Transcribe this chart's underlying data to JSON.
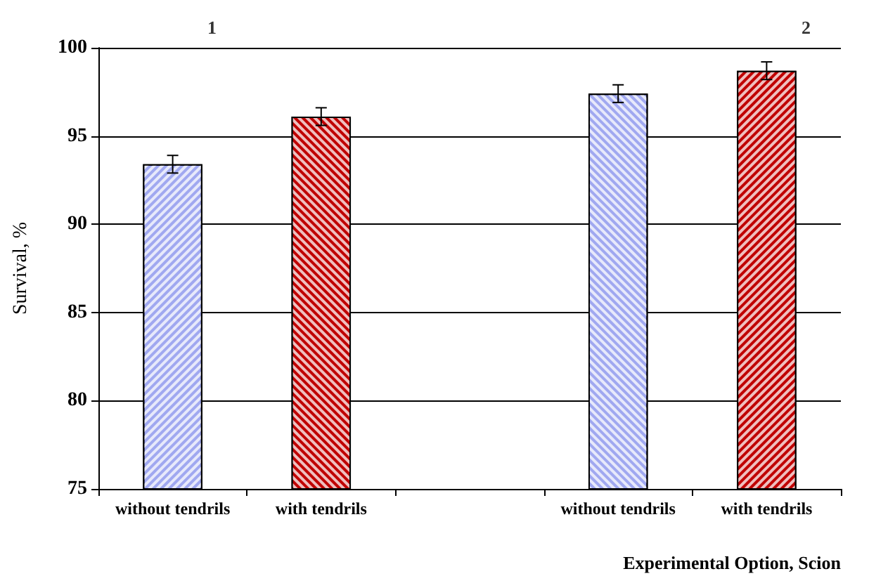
{
  "chart_data": {
    "type": "bar",
    "categories": [
      "without tendrils",
      "with tendrils",
      null,
      "without tendrils",
      "with tendrils"
    ],
    "values": [
      93.4,
      96.1,
      null,
      97.4,
      98.7
    ],
    "errors": [
      0.5,
      0.5,
      null,
      0.5,
      0.5
    ],
    "colors": [
      "#a0a8f0",
      "#c00000",
      null,
      "#a0a8f0",
      "#c00000"
    ],
    "xlabel": "Experimental Option, Scion",
    "ylabel": "Survival, %",
    "annotations": [
      "1",
      "2"
    ],
    "ylim": [
      75,
      100
    ],
    "yticks": [
      75,
      80,
      85,
      90,
      95,
      100
    ],
    "grid": "y"
  }
}
